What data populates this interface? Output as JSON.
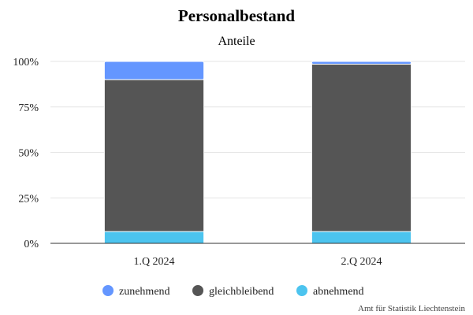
{
  "chart_data": {
    "type": "bar",
    "stacked": true,
    "title": "Personalbestand",
    "subtitle": "Anteile",
    "categories": [
      "1.Q 2024",
      "2.Q 2024"
    ],
    "series": [
      {
        "name": "abnehmend",
        "values": [
          6.5,
          6.5
        ],
        "color": "#4cc4ef"
      },
      {
        "name": "gleichbleibend",
        "values": [
          83.5,
          92.0
        ],
        "color": "#555555"
      },
      {
        "name": "zunehmend",
        "values": [
          10.0,
          1.5
        ],
        "color": "#6496ff"
      }
    ],
    "ylim": [
      0,
      100
    ],
    "yticks": [
      0,
      25,
      50,
      75,
      100
    ],
    "ytick_labels": [
      "0%",
      "25%",
      "50%",
      "75%",
      "100%"
    ],
    "legend_order": [
      "zunehmend",
      "gleichbleibend",
      "abnehmend"
    ],
    "legend_position": "bottom",
    "grid": true
  },
  "credit": "Amt für Statistik Liechtenstein"
}
